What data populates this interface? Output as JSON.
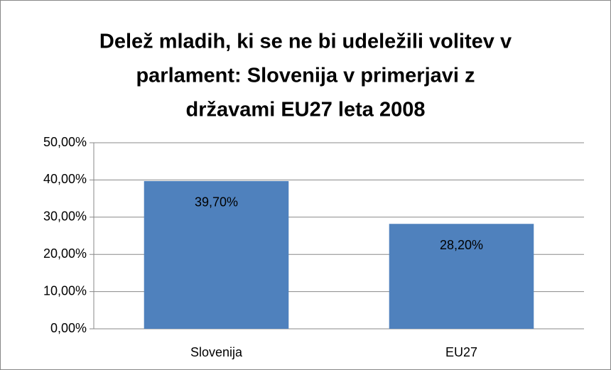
{
  "chart_data": {
    "type": "bar",
    "title": [
      "Delež mladih, ki se ne bi udeležili volitev v",
      "parlament: Slovenija v primerjavi z",
      "državami EU27 leta 2008"
    ],
    "categories": [
      "Slovenija",
      "EU27"
    ],
    "values": [
      39.7,
      28.2
    ],
    "value_labels": [
      "39,70%",
      "28,20%"
    ],
    "color": "#4f81bd",
    "ylim": [
      0,
      50
    ],
    "yticks": [
      {
        "value": 0,
        "label": "0,00%"
      },
      {
        "value": 10,
        "label": "10,00%"
      },
      {
        "value": 20,
        "label": "20,00%"
      },
      {
        "value": 30,
        "label": "30,00%"
      },
      {
        "value": 40,
        "label": "40,00%"
      },
      {
        "value": 50,
        "label": "50,00%"
      }
    ],
    "grid": true
  }
}
